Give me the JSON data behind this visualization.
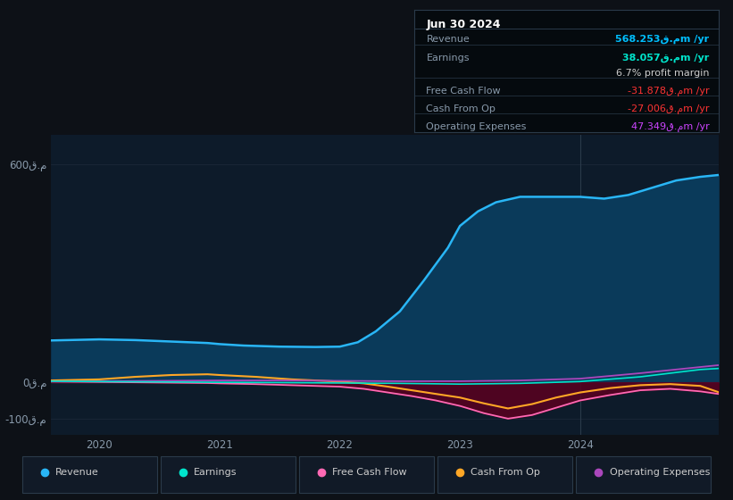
{
  "bg_color": "#0d1117",
  "plot_bg_color": "#0d1b2a",
  "ytick_labels": [
    "600ق.م",
    "0ق.م",
    "-100ق.م"
  ],
  "ytick_values": [
    600,
    0,
    -100
  ],
  "xtick_labels": [
    "2020",
    "2021",
    "2022",
    "2023",
    "2024"
  ],
  "xtick_values": [
    2020,
    2021,
    2022,
    2023,
    2024
  ],
  "xlim": [
    2019.6,
    2025.15
  ],
  "ylim": [
    -145,
    680
  ],
  "info_box": {
    "title": "Jun 30 2024",
    "rows": [
      {
        "label": "Revenue",
        "value": "568.253ق.مm /yr",
        "value_color": "#00bfff"
      },
      {
        "label": "Earnings",
        "value": "38.057ق.مm /yr",
        "value_color": "#00e5cc"
      },
      {
        "label": "",
        "value": "6.7% profit margin",
        "value_color": "#cccccc"
      },
      {
        "label": "Free Cash Flow",
        "value": "-31.878ق.مm /yr",
        "value_color": "#ff3333"
      },
      {
        "label": "Cash From Op",
        "value": "-27.006ق.مm /yr",
        "value_color": "#ff3333"
      },
      {
        "label": "Operating Expenses",
        "value": "47.349ق.مm /yr",
        "value_color": "#cc44ff"
      }
    ]
  },
  "series": {
    "Revenue": {
      "color": "#29b6f6",
      "fill_color": "#0a3a5a",
      "x": [
        2019.6,
        2020.0,
        2020.3,
        2020.6,
        2020.9,
        2021.0,
        2021.2,
        2021.5,
        2021.8,
        2022.0,
        2022.15,
        2022.3,
        2022.5,
        2022.7,
        2022.9,
        2023.0,
        2023.15,
        2023.3,
        2023.5,
        2023.75,
        2024.0,
        2024.2,
        2024.4,
        2024.6,
        2024.8,
        2025.0,
        2025.15
      ],
      "y": [
        115,
        118,
        116,
        112,
        108,
        105,
        101,
        98,
        97,
        98,
        110,
        140,
        195,
        280,
        370,
        430,
        470,
        495,
        510,
        510,
        510,
        505,
        515,
        535,
        555,
        565,
        570
      ]
    },
    "Earnings": {
      "color": "#00e5cc",
      "x": [
        2019.6,
        2020.0,
        2020.5,
        2021.0,
        2021.5,
        2022.0,
        2022.5,
        2023.0,
        2023.5,
        2024.0,
        2024.5,
        2025.0,
        2025.15
      ],
      "y": [
        3,
        2,
        1,
        0,
        -1,
        -2,
        -3,
        -5,
        -3,
        2,
        15,
        35,
        38
      ]
    },
    "FreeCashFlow": {
      "color": "#ff69b4",
      "fill_color": "#5a0020",
      "x": [
        2019.6,
        2020.0,
        2020.3,
        2020.6,
        2020.9,
        2021.0,
        2021.3,
        2021.6,
        2022.0,
        2022.2,
        2022.4,
        2022.6,
        2022.8,
        2023.0,
        2023.2,
        2023.4,
        2023.6,
        2023.8,
        2024.0,
        2024.25,
        2024.5,
        2024.75,
        2025.0,
        2025.15
      ],
      "y": [
        2,
        1,
        0,
        -1,
        -2,
        -3,
        -5,
        -8,
        -12,
        -18,
        -28,
        -38,
        -50,
        -65,
        -85,
        -100,
        -90,
        -70,
        -50,
        -35,
        -22,
        -18,
        -25,
        -32
      ]
    },
    "CashFromOp": {
      "color": "#ffa726",
      "x": [
        2019.6,
        2020.0,
        2020.3,
        2020.6,
        2020.9,
        2021.0,
        2021.3,
        2021.6,
        2022.0,
        2022.2,
        2022.4,
        2022.6,
        2022.8,
        2023.0,
        2023.2,
        2023.4,
        2023.6,
        2023.8,
        2024.0,
        2024.25,
        2024.5,
        2024.75,
        2025.0,
        2025.15
      ],
      "y": [
        5,
        8,
        15,
        20,
        22,
        20,
        15,
        8,
        2,
        -3,
        -12,
        -22,
        -32,
        -42,
        -58,
        -72,
        -60,
        -42,
        -28,
        -16,
        -8,
        -5,
        -10,
        -27
      ]
    },
    "OperatingExpenses": {
      "color": "#ab47bc",
      "x": [
        2019.6,
        2020.0,
        2020.5,
        2021.0,
        2021.5,
        2022.0,
        2022.5,
        2023.0,
        2023.5,
        2024.0,
        2024.5,
        2025.0,
        2025.15
      ],
      "y": [
        3,
        3,
        4,
        5,
        5,
        4,
        3,
        3,
        5,
        10,
        25,
        42,
        47
      ]
    }
  },
  "vline_x": 2024.0,
  "legend": [
    {
      "label": "Revenue",
      "color": "#29b6f6"
    },
    {
      "label": "Earnings",
      "color": "#00e5cc"
    },
    {
      "label": "Free Cash Flow",
      "color": "#ff69b4"
    },
    {
      "label": "Cash From Op",
      "color": "#ffa726"
    },
    {
      "label": "Operating Expenses",
      "color": "#ab47bc"
    }
  ],
  "grid_color": "#1e2a3a",
  "zero_line_color": "#4a5568",
  "label_color": "#8899aa"
}
